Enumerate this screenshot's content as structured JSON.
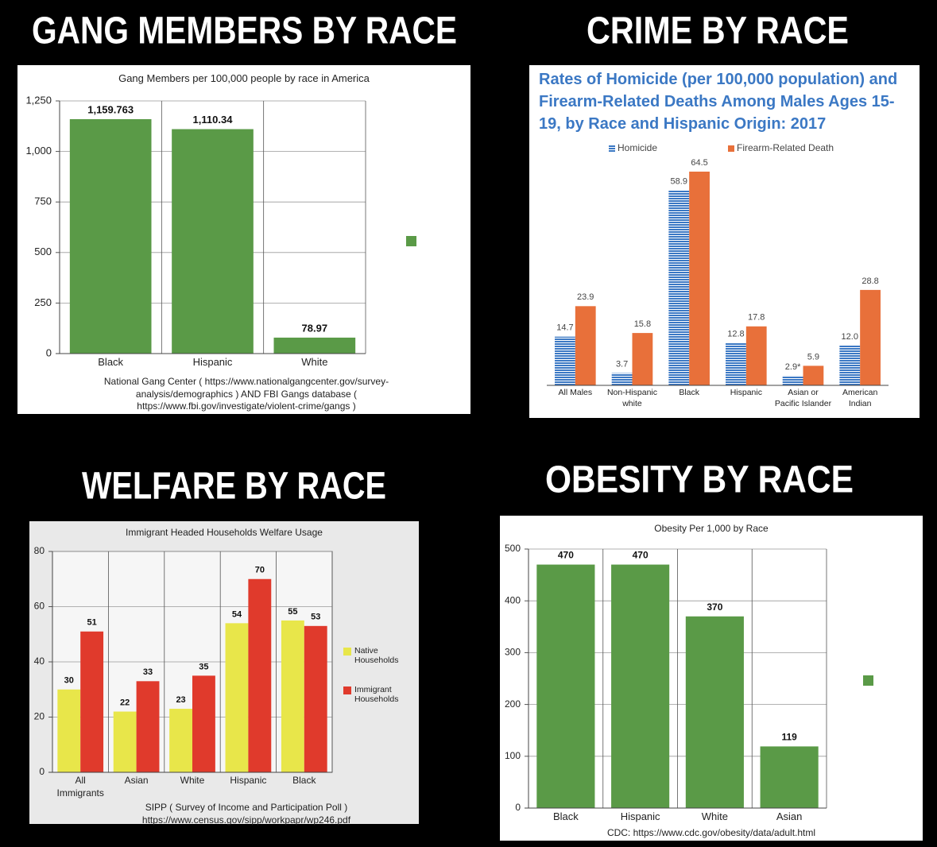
{
  "chart_data": [
    {
      "type": "bar",
      "header": "GANG MEMBERS BY RACE",
      "title": "Gang Members per 100,000 people by race in America",
      "categories": [
        "Black",
        "Hispanic",
        "White"
      ],
      "values": [
        1159.763,
        1110.34,
        78.97
      ],
      "value_labels": [
        "1,159.763",
        "1,110.34",
        "78.97"
      ],
      "color": "#5a9a47",
      "ylim": [
        0,
        1250
      ],
      "yticks": [
        0,
        250,
        500,
        750,
        {
          "value": 1000,
          "label": "1,000"
        },
        {
          "value": 1250,
          "label": "1,250"
        }
      ],
      "grid": true,
      "source": "National Gang Center ( https://www.nationalgangcenter.gov/survey-analysis/demographics ) AND FBI Gangs database ( https://www.fbi.gov/investigate/violent-crime/gangs )"
    },
    {
      "type": "bar",
      "header": "CRIME BY RACE",
      "title": "Rates of Homicide (per 100,000 population) and Firearm-Related Deaths Among Males Ages 15-19, by Race and Hispanic Origin: 2017",
      "categories": [
        "All Males",
        "Non-Hispanic white",
        "Black",
        "Hispanic",
        "Asian or Pacific Islander",
        "American Indian"
      ],
      "series": [
        {
          "name": "Homicide",
          "color": "#3b78c4",
          "pattern": "horizontal-lines",
          "values": [
            14.7,
            3.7,
            58.9,
            12.8,
            2.9,
            12.0
          ],
          "value_labels": [
            "14.7",
            "3.7",
            "58.9",
            "12.8",
            "2.9*",
            "12.0"
          ]
        },
        {
          "name": "Firearm-Related Death",
          "color": "#e8703a",
          "values": [
            23.9,
            15.8,
            64.5,
            17.8,
            5.9,
            28.8
          ]
        }
      ],
      "legend": "top",
      "grid": false
    },
    {
      "type": "bar",
      "header": "WELFARE BY RACE",
      "title": "Immigrant Headed Households Welfare Usage",
      "categories": [
        "All Immigrants",
        "Asian",
        "White",
        "Hispanic",
        "Black"
      ],
      "series": [
        {
          "name": "Native Households",
          "color": "#e8e64a",
          "values": [
            30,
            22,
            23,
            54,
            55
          ]
        },
        {
          "name": "Immigrant Households",
          "color": "#e03a2c",
          "values": [
            51,
            33,
            35,
            70,
            53
          ]
        }
      ],
      "ylim": [
        0,
        80
      ],
      "yticks": [
        0,
        20,
        40,
        60,
        80
      ],
      "grid": true,
      "legend": "right",
      "source": "SIPP ( Survey of Income and Participation Poll ) https://www.census.gov/sipp/workpapr/wp246.pdf"
    },
    {
      "type": "bar",
      "header": "OBESITY BY RACE",
      "title": "Obesity Per 1,000 by Race",
      "categories": [
        "Black",
        "Hispanic",
        "White",
        "Asian"
      ],
      "values": [
        470,
        470,
        370,
        119
      ],
      "color": "#5a9a47",
      "ylim": [
        0,
        500
      ],
      "yticks": [
        0,
        100,
        200,
        300,
        400,
        500
      ],
      "grid": true,
      "source": "CDC: https://www.cdc.gov/obesity/data/adult.html"
    }
  ]
}
